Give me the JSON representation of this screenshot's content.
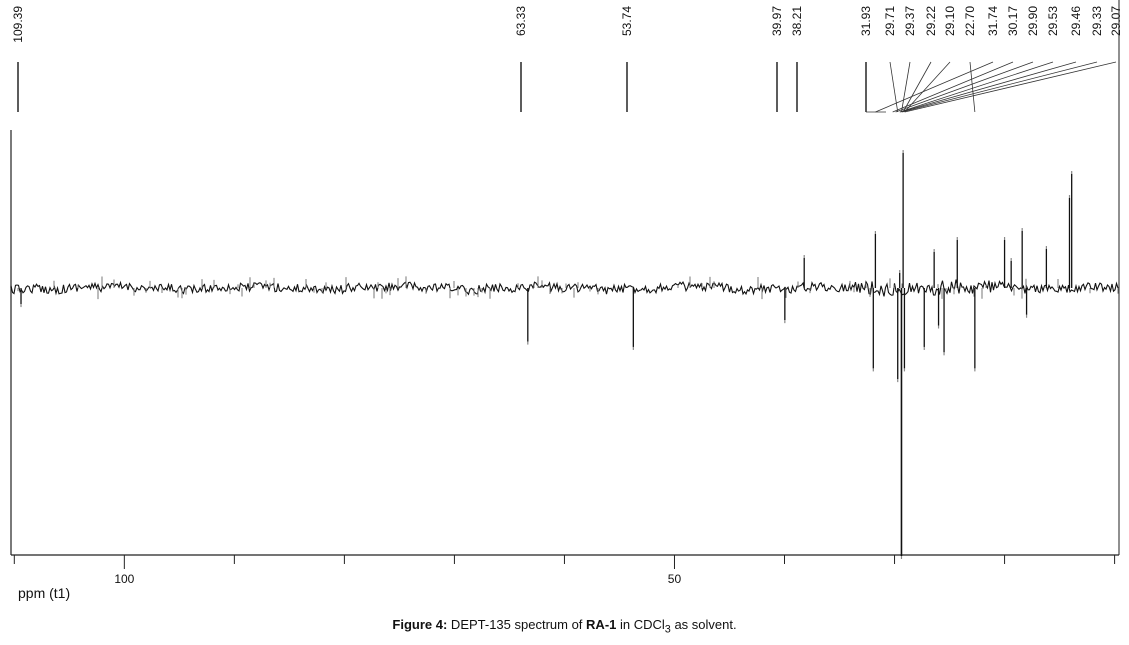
{
  "chart_data": {
    "type": "line",
    "xlabel": "ppm (t1)",
    "x_reversed": true,
    "xlim": [
      110.3,
      9.6
    ],
    "x_ticks": [
      100,
      50
    ],
    "minor_ticks": [
      110,
      90,
      80,
      70,
      60,
      40,
      30,
      20,
      10
    ],
    "peak_labels": [
      "109.39",
      "63.33",
      "53.74",
      "39.97",
      "38.21",
      "31.93",
      "29.71",
      "29.37",
      "29.22",
      "29.10",
      "22.70",
      "31.74",
      "30.17",
      "29.90",
      "29.53",
      "29.46",
      "29.33",
      "29.07"
    ],
    "peaks": [
      {
        "ppm": 109.39,
        "intensity": -0.06
      },
      {
        "ppm": 63.33,
        "intensity": -0.2
      },
      {
        "ppm": 53.74,
        "intensity": -0.22
      },
      {
        "ppm": 39.97,
        "intensity": -0.12
      },
      {
        "ppm": 38.21,
        "intensity": 0.1
      },
      {
        "ppm": 31.93,
        "intensity": -0.3
      },
      {
        "ppm": 31.74,
        "intensity": 0.18
      },
      {
        "ppm": 29.71,
        "intensity": -0.34
      },
      {
        "ppm": 29.53,
        "intensity": 0.05
      },
      {
        "ppm": 29.37,
        "intensity": -1.0
      },
      {
        "ppm": 29.22,
        "intensity": 0.45
      },
      {
        "ppm": 29.1,
        "intensity": -0.3
      },
      {
        "ppm": 27.3,
        "intensity": -0.22
      },
      {
        "ppm": 26.4,
        "intensity": 0.12
      },
      {
        "ppm": 26.0,
        "intensity": -0.14
      },
      {
        "ppm": 25.5,
        "intensity": -0.24
      },
      {
        "ppm": 24.3,
        "intensity": 0.16
      },
      {
        "ppm": 22.7,
        "intensity": -0.3
      },
      {
        "ppm": 20.0,
        "intensity": 0.16
      },
      {
        "ppm": 19.4,
        "intensity": 0.09
      },
      {
        "ppm": 18.4,
        "intensity": 0.19
      },
      {
        "ppm": 18.0,
        "intensity": -0.1
      },
      {
        "ppm": 16.2,
        "intensity": 0.13
      },
      {
        "ppm": 14.1,
        "intensity": 0.3
      },
      {
        "ppm": 13.9,
        "intensity": 0.38
      }
    ]
  },
  "caption": {
    "figure_label": "Figure 4:",
    "text_1": " DEPT-135 spectrum of ",
    "compound": "RA-1",
    "text_2": " in CDCl",
    "subscript": "3",
    "text_3": " as solvent."
  }
}
